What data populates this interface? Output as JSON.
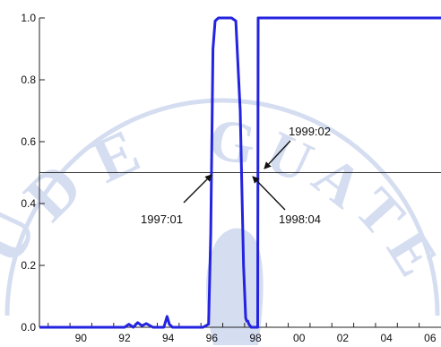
{
  "chart_data": {
    "type": "line",
    "title": "",
    "xlabel": "",
    "ylabel": "",
    "x_unit": "year",
    "xlim": [
      1988.6,
      2007.0
    ],
    "ylim": [
      0.0,
      1.0
    ],
    "x_tick_labels": [
      "90",
      "92",
      "94",
      "96",
      "98",
      "00",
      "02",
      "04",
      "06"
    ],
    "x_tick_years": [
      1990,
      1992,
      1994,
      1996,
      1998,
      2000,
      2002,
      2004,
      2006
    ],
    "y_ticks": [
      0.0,
      0.2,
      0.4,
      0.6,
      0.8,
      1.0
    ],
    "y_tick_labels": [
      "0.0",
      "0.2",
      "0.4",
      "0.6",
      "0.8",
      "1.0"
    ],
    "grid": false,
    "threshold": 0.5,
    "series": [
      {
        "color": "#2323e0",
        "x": [
          1988.6,
          1990.0,
          1991.0,
          1992.5,
          1992.7,
          1992.9,
          1993.1,
          1993.3,
          1993.5,
          1993.8,
          1994.0,
          1994.3,
          1994.45,
          1994.55,
          1994.7,
          1995.0,
          1996.1,
          1996.35,
          1996.45,
          1996.55,
          1996.65,
          1996.8,
          1997.0,
          1997.2,
          1997.4,
          1997.6,
          1997.8,
          1997.95,
          1998.05,
          1998.1,
          1998.15,
          1998.2,
          1998.25,
          1998.3,
          1998.4,
          1998.6,
          1998.62,
          1998.7,
          1999.0,
          2007.0
        ],
        "y": [
          0.0,
          0.0,
          0.0,
          0.0,
          0.01,
          0.0,
          0.015,
          0.005,
          0.012,
          0.0,
          0.0,
          0.0,
          0.035,
          0.01,
          0.0,
          0.0,
          0.0,
          0.01,
          0.3,
          0.9,
          0.99,
          1.0,
          1.0,
          1.0,
          1.0,
          0.99,
          0.7,
          0.2,
          0.03,
          0.02,
          0.02,
          0.01,
          0.005,
          0.0,
          0.0,
          0.0,
          1.0,
          1.0,
          1.0,
          1.0
        ]
      }
    ],
    "annotations": [
      {
        "text": "1997:01",
        "x": 1997.0
      },
      {
        "text": "1998:04",
        "x": 1998.25
      },
      {
        "text": "1999:02",
        "x": 1999.08
      }
    ]
  },
  "colors": {
    "series": "#2323e0",
    "axis": "#222222",
    "threshold": "#333333",
    "watermark": "#b4c3e6"
  }
}
